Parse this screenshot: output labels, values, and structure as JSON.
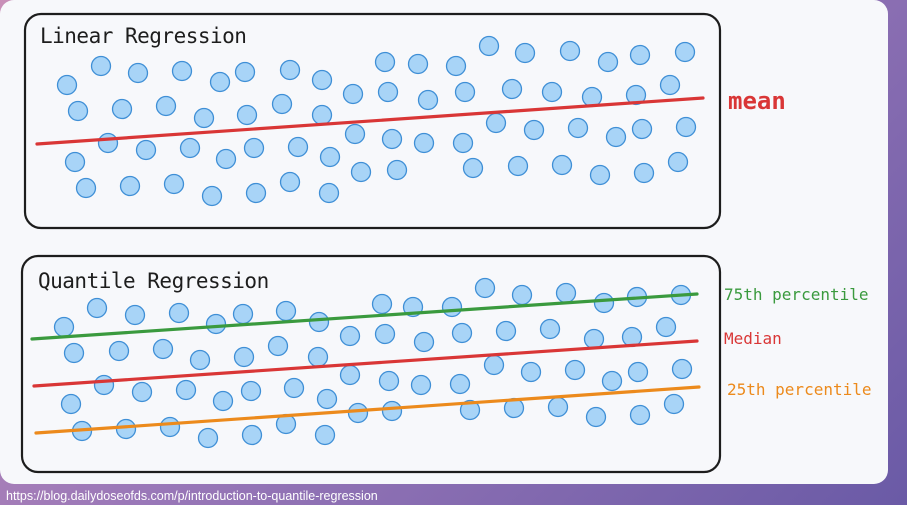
{
  "panels": [
    {
      "title": "Linear Regression",
      "lines": [
        {
          "label": "mean",
          "color": "#d93636"
        }
      ]
    },
    {
      "title": "Quantile Regression",
      "lines": [
        {
          "label": "75th percentile",
          "color": "#3a9a3e"
        },
        {
          "label": "Median",
          "color": "#d93636"
        },
        {
          "label": "25th percentile",
          "color": "#ec8a1c"
        }
      ]
    }
  ],
  "point_style": {
    "fill": "#a8d4f7",
    "stroke": "#3f8fd6"
  },
  "source": "https://blog.dailydoseofds.com/p/introduction-to-quantile-regression"
}
